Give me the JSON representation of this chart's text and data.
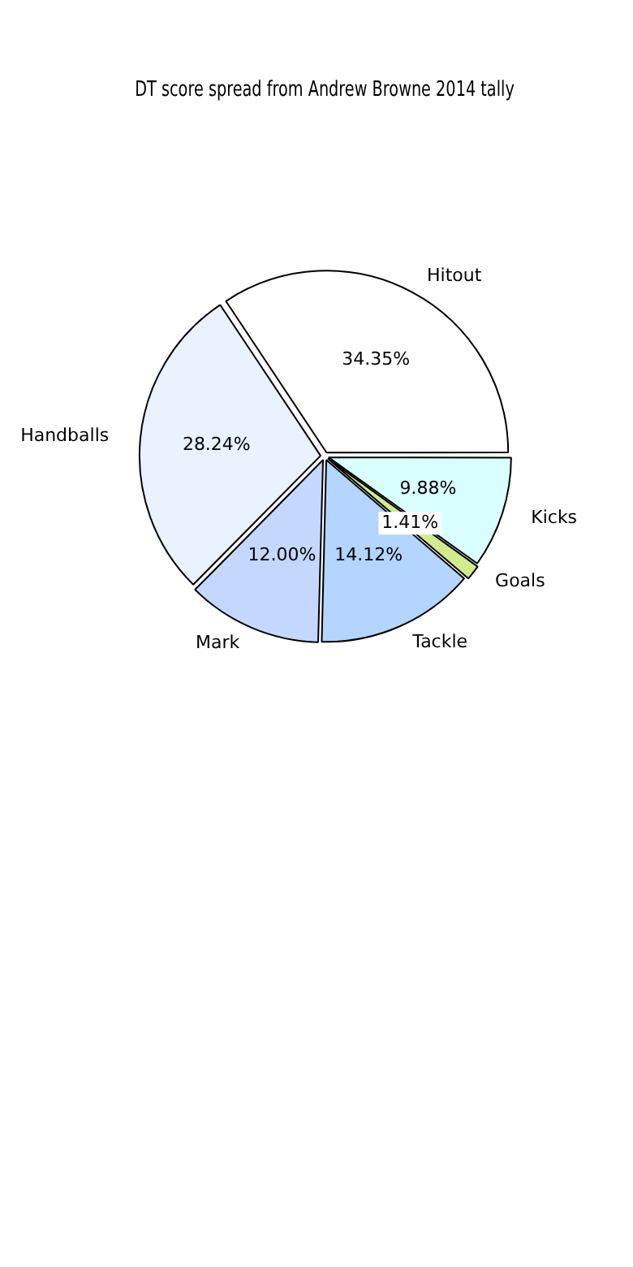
{
  "chart_data": {
    "type": "pie",
    "title": "DT score spread from Andrew Browne 2014 tally",
    "categories": [
      "Hitout",
      "Kicks",
      "Goals",
      "Tackle",
      "Mark",
      "Handballs"
    ],
    "values": [
      34.35,
      9.88,
      1.41,
      14.12,
      12.0,
      28.24
    ],
    "value_labels": [
      "34.35%",
      "9.88%",
      "1.41%",
      "14.12%",
      "12.00%",
      "28.24%"
    ],
    "colors": [
      "#ffffff",
      "#d9ffff",
      "#d0ec8c",
      "#b3d5ff",
      "#c4d8ff",
      "#eaf2ff"
    ],
    "legend": false
  }
}
